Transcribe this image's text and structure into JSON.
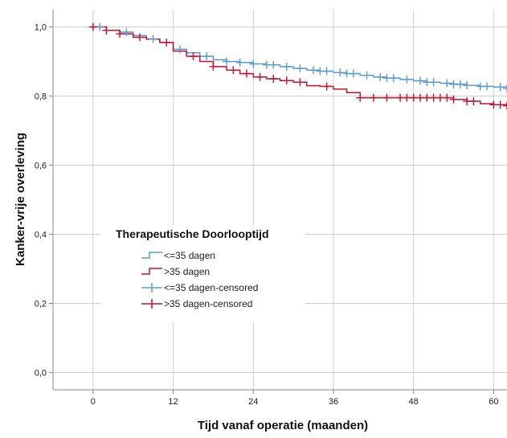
{
  "chart_data": {
    "type": "line",
    "subtype": "kaplan-meier",
    "xlabel": "Tijd vanaf operatie (maanden)",
    "ylabel": "Kanker-vrije overleving",
    "xlim": [
      -6,
      62
    ],
    "ylim": [
      -0.05,
      1.05
    ],
    "x_ticks": [
      0,
      12,
      24,
      36,
      48,
      60
    ],
    "y_ticks": [
      0.0,
      0.2,
      0.4,
      0.6,
      0.8,
      1.0
    ],
    "y_tick_labels": [
      "0,0",
      "0,2",
      "0,4",
      "0,6",
      "0,8",
      "1,0"
    ],
    "grid": true,
    "legend_position": "center-left",
    "legend": {
      "title": "Therapeutische Doorlooptijd",
      "entries": [
        "<=35 dagen",
        ">35 dagen",
        "<=35 dagen-censored",
        ">35 dagen-censored"
      ]
    },
    "series": [
      {
        "name": "<=35 dagen",
        "color": "#5b9bd5",
        "x": [
          0,
          2,
          4,
          6,
          8,
          10,
          12,
          14,
          16,
          18,
          20,
          22,
          24,
          26,
          28,
          30,
          32,
          34,
          36,
          38,
          40,
          42,
          44,
          46,
          48,
          50,
          52,
          54,
          56,
          58,
          60,
          62
        ],
        "y": [
          1.0,
          0.99,
          0.985,
          0.975,
          0.965,
          0.955,
          0.935,
          0.925,
          0.915,
          0.905,
          0.9,
          0.897,
          0.893,
          0.89,
          0.885,
          0.88,
          0.875,
          0.872,
          0.868,
          0.865,
          0.86,
          0.855,
          0.852,
          0.848,
          0.844,
          0.84,
          0.837,
          0.834,
          0.831,
          0.828,
          0.826,
          0.822
        ],
        "censored_x": [
          0,
          1,
          2,
          5,
          9,
          13,
          17,
          20,
          22,
          24,
          26,
          27,
          29,
          31,
          33,
          34,
          35,
          37,
          38,
          39,
          41,
          43,
          44,
          45,
          47,
          49,
          50,
          51,
          53,
          54,
          55,
          56,
          58,
          59,
          61,
          62
        ]
      },
      {
        "name": ">35 dagen",
        "color": "#c8102e",
        "x": [
          0,
          2,
          4,
          6,
          8,
          10,
          12,
          14,
          16,
          18,
          20,
          22,
          24,
          26,
          28,
          30,
          32,
          34,
          36,
          38,
          40,
          42,
          44,
          46,
          48,
          50,
          52,
          54,
          56,
          58,
          60,
          62
        ],
        "y": [
          1.0,
          0.99,
          0.98,
          0.97,
          0.965,
          0.955,
          0.93,
          0.915,
          0.9,
          0.885,
          0.875,
          0.865,
          0.855,
          0.85,
          0.845,
          0.84,
          0.83,
          0.828,
          0.82,
          0.81,
          0.795,
          0.795,
          0.795,
          0.795,
          0.795,
          0.795,
          0.795,
          0.79,
          0.785,
          0.778,
          0.775,
          0.772
        ],
        "censored_x": [
          0,
          2,
          4,
          7,
          11,
          15,
          18,
          21,
          23,
          25,
          27,
          29,
          31,
          35,
          40,
          42,
          44,
          46,
          47,
          48,
          49,
          50,
          51,
          52,
          53,
          54,
          56,
          57,
          60,
          61,
          62
        ]
      }
    ]
  }
}
